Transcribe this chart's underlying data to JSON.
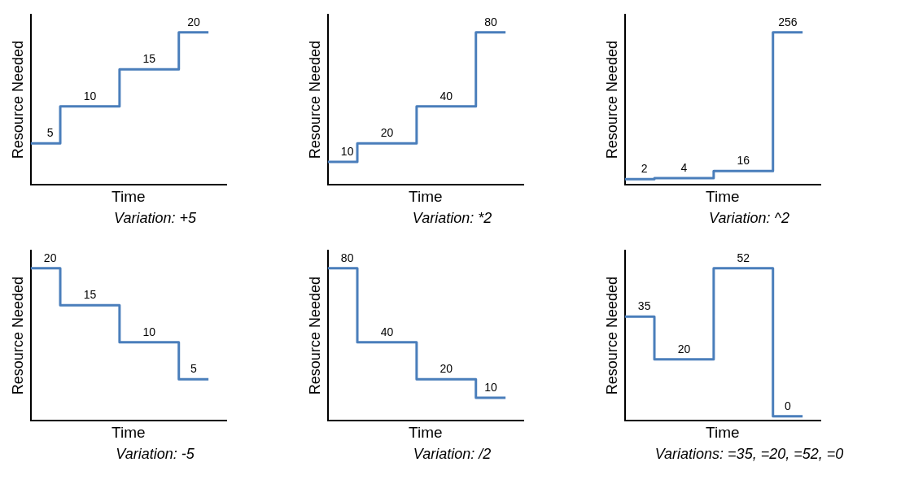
{
  "chart_data": [
    {
      "type": "step",
      "categories": [
        null,
        null,
        null,
        null
      ],
      "values": [
        5,
        10,
        15,
        20
      ],
      "color": "#4a7ebb",
      "ylabel": "Resource Needed",
      "xlabel": "Time",
      "annotations": [
        "Variation: +5"
      ],
      "data_labels": true,
      "tick_labels": false,
      "grid": false,
      "legend": false
    },
    {
      "type": "step",
      "categories": [
        null,
        null,
        null,
        null
      ],
      "values": [
        10,
        20,
        40,
        80
      ],
      "color": "#4a7ebb",
      "ylabel": "Resource Needed",
      "xlabel": "Time",
      "annotations": [
        "Variation: *2"
      ],
      "data_labels": true,
      "tick_labels": false,
      "grid": false,
      "legend": false
    },
    {
      "type": "step",
      "categories": [
        null,
        null,
        null,
        null
      ],
      "values": [
        2,
        4,
        16,
        256
      ],
      "color": "#4a7ebb",
      "ylabel": "Resource Needed",
      "xlabel": "Time",
      "annotations": [
        "Variation: ^2"
      ],
      "data_labels": true,
      "tick_labels": false,
      "grid": false,
      "legend": false
    },
    {
      "type": "step",
      "categories": [
        null,
        null,
        null,
        null
      ],
      "values": [
        20,
        15,
        10,
        5
      ],
      "color": "#4a7ebb",
      "ylabel": "Resource Needed",
      "xlabel": "Time",
      "annotations": [
        "Variation: -5"
      ],
      "data_labels": true,
      "tick_labels": false,
      "grid": false,
      "legend": false
    },
    {
      "type": "step",
      "categories": [
        null,
        null,
        null,
        null
      ],
      "values": [
        80,
        40,
        20,
        10
      ],
      "color": "#4a7ebb",
      "ylabel": "Resource Needed",
      "xlabel": "Time",
      "annotations": [
        "Variation: /2"
      ],
      "data_labels": true,
      "tick_labels": false,
      "grid": false,
      "legend": false
    },
    {
      "type": "step",
      "categories": [
        null,
        null,
        null,
        null
      ],
      "values": [
        35,
        20,
        52,
        0
      ],
      "color": "#4a7ebb",
      "ylabel": "Resource Needed",
      "xlabel": "Time",
      "annotations": [
        "Variations: =35, =20, =52, =0"
      ],
      "data_labels": true,
      "tick_labels": false,
      "grid": false,
      "legend": false
    }
  ]
}
